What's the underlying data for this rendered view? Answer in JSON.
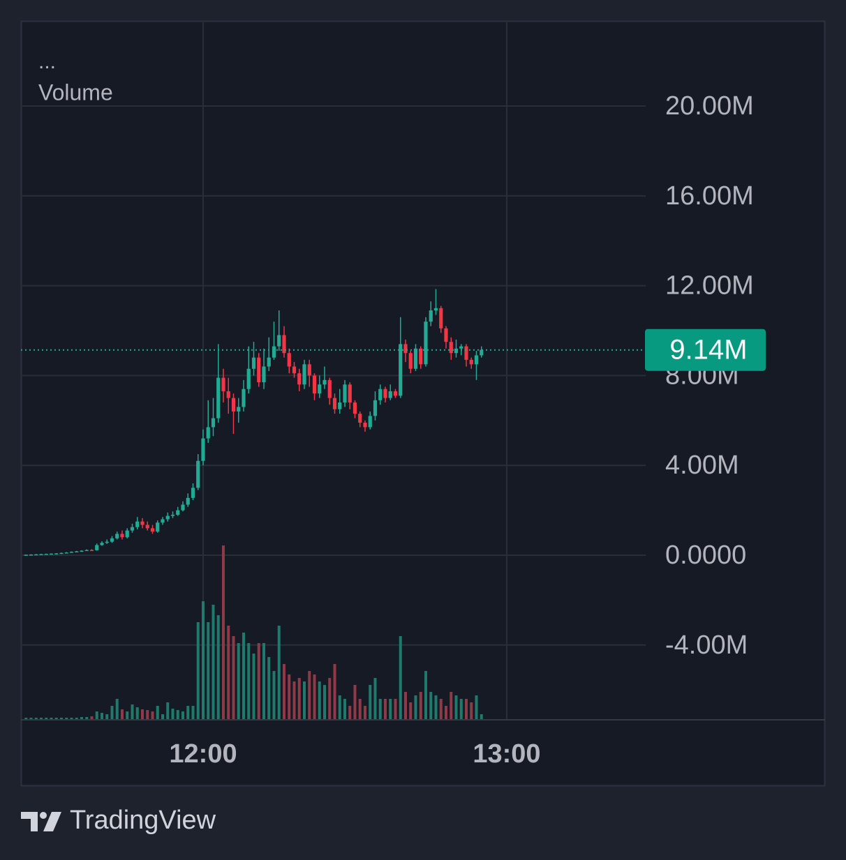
{
  "chart_data": {
    "type": "candlestick",
    "menu": "...",
    "volume_label": "Volume",
    "brand": "TradingView",
    "up_color": "#22ab94",
    "down_color": "#f23645",
    "volume_up_color": "#1f7a6c",
    "volume_down_color": "#8e3a47",
    "grid": true,
    "ylim": [
      -7330000,
      23790000
    ],
    "yticks": [
      {
        "value": -4000000,
        "label": "-4.00M"
      },
      {
        "value": 0,
        "label": "0.0000"
      },
      {
        "value": 4000000,
        "label": "4.00M"
      },
      {
        "value": 8000000,
        "label": "8.00M"
      },
      {
        "value": 12000000,
        "label": "12.00M"
      },
      {
        "value": 16000000,
        "label": "16.00M"
      },
      {
        "value": 20000000,
        "label": "20.00M"
      }
    ],
    "xlim": [
      684,
      807.45
    ],
    "xticks": [
      {
        "value": 720,
        "label": "12:00"
      },
      {
        "value": 780,
        "label": "13:00"
      }
    ],
    "last_price": {
      "value": 9140000,
      "label": "9.14M"
    },
    "x": [
      685,
      686,
      687,
      688,
      689,
      690,
      691,
      692,
      693,
      694,
      695,
      696,
      697,
      698,
      699,
      700,
      701,
      702,
      703,
      704,
      705,
      706,
      707,
      708,
      709,
      710,
      711,
      712,
      713,
      714,
      715,
      716,
      717,
      718,
      719,
      720,
      721,
      722,
      723,
      724,
      725,
      726,
      727,
      728,
      729,
      730,
      731,
      732,
      733,
      734,
      735,
      736,
      737,
      738,
      739,
      740,
      741,
      742,
      743,
      744,
      745,
      746,
      747,
      748,
      749,
      750,
      751,
      752,
      753,
      754,
      755,
      756,
      757,
      758,
      759,
      760,
      761,
      762,
      763,
      764,
      765,
      766,
      767,
      768,
      769,
      770,
      771,
      772,
      773,
      774,
      775
    ],
    "open": [
      10000,
      20000,
      30000,
      40000,
      50000,
      60000,
      70000,
      80000,
      100000,
      120000,
      150000,
      170000,
      200000,
      230000,
      220000,
      450000,
      550000,
      600000,
      750000,
      950000,
      800000,
      1100000,
      1250000,
      1500000,
      1350000,
      1200000,
      1050000,
      1450000,
      1600000,
      1750000,
      1800000,
      2000000,
      2250000,
      2550000,
      3000000,
      4200000,
      5200000,
      5700000,
      6100000,
      7900000,
      7300000,
      7000000,
      6400000,
      6600000,
      7400000,
      8300000,
      8800000,
      7700000,
      8400000,
      8800000,
      9300000,
      9800000,
      9000000,
      8400000,
      8100000,
      7600000,
      8500000,
      8000000,
      7200000,
      7600000,
      7800000,
      7000000,
      6500000,
      6800000,
      7600000,
      6800000,
      6300000,
      5900000,
      5700000,
      6200000,
      6900000,
      7400000,
      7000000,
      7300000,
      7100000,
      9400000,
      9000000,
      8300000,
      9200000,
      8500000,
      10400000,
      10900000,
      11000000,
      10100000,
      9500000,
      9000000,
      9200000,
      9300000,
      8700000,
      8500000,
      8900000
    ],
    "high": [
      30000,
      40000,
      50000,
      60000,
      70000,
      80000,
      90000,
      120000,
      140000,
      170000,
      190000,
      220000,
      260000,
      270000,
      520000,
      620000,
      700000,
      850000,
      1050000,
      1100000,
      1200000,
      1400000,
      1700000,
      1650000,
      1500000,
      1350000,
      1550000,
      1700000,
      1900000,
      1950000,
      2150000,
      2400000,
      2750000,
      3200000,
      4500000,
      5600000,
      6900000,
      7000000,
      9400000,
      8300000,
      7900000,
      7200000,
      7000000,
      7800000,
      9300000,
      9500000,
      9000000,
      9200000,
      9700000,
      10400000,
      10900000,
      10200000,
      9200000,
      8600000,
      8300000,
      8700000,
      8700000,
      8100000,
      8000000,
      8400000,
      7900000,
      7200000,
      7400000,
      7800000,
      7700000,
      6900000,
      6400000,
      6000000,
      6400000,
      7300000,
      7600000,
      7500000,
      7600000,
      7400000,
      10600000,
      9600000,
      9100000,
      9400000,
      9300000,
      10600000,
      11300000,
      11850000,
      11100000,
      10200000,
      9700000,
      9600000,
      9400000,
      9400000,
      8800000,
      9100000,
      9300000
    ],
    "low": [
      0,
      10000,
      20000,
      30000,
      40000,
      50000,
      60000,
      70000,
      90000,
      110000,
      140000,
      160000,
      190000,
      200000,
      200000,
      420000,
      500000,
      550000,
      700000,
      700000,
      750000,
      1000000,
      1150000,
      1200000,
      1100000,
      950000,
      1000000,
      1350000,
      1500000,
      1650000,
      1750000,
      1950000,
      2150000,
      2450000,
      2900000,
      4000000,
      5000000,
      5300000,
      5900000,
      6800000,
      6300000,
      5400000,
      5900000,
      6400000,
      7200000,
      8000000,
      7500000,
      7400000,
      8200000,
      8700000,
      9100000,
      8800000,
      8100000,
      7900000,
      7300000,
      7400000,
      7500000,
      6900000,
      7000000,
      7400000,
      6700000,
      6300000,
      6300000,
      6600000,
      6500000,
      6100000,
      5700000,
      5500000,
      5600000,
      6000000,
      6700000,
      6800000,
      6900000,
      7000000,
      7000000,
      8600000,
      8100000,
      8200000,
      8300000,
      8400000,
      10200000,
      10700000,
      9900000,
      9200000,
      8700000,
      8800000,
      8900000,
      8400000,
      8300000,
      7800000,
      8800000
    ],
    "close": [
      20000,
      30000,
      40000,
      50000,
      60000,
      70000,
      80000,
      100000,
      120000,
      150000,
      170000,
      200000,
      230000,
      220000,
      450000,
      550000,
      600000,
      750000,
      950000,
      800000,
      1100000,
      1250000,
      1500000,
      1350000,
      1200000,
      1050000,
      1450000,
      1600000,
      1750000,
      1800000,
      2000000,
      2250000,
      2550000,
      3000000,
      4200000,
      5200000,
      5700000,
      6100000,
      7900000,
      7300000,
      7000000,
      6400000,
      6600000,
      7400000,
      8300000,
      8800000,
      7700000,
      8400000,
      8800000,
      9300000,
      9800000,
      9000000,
      8400000,
      8100000,
      7600000,
      8500000,
      8000000,
      7200000,
      7600000,
      7800000,
      7000000,
      6500000,
      6800000,
      7600000,
      6800000,
      6300000,
      5900000,
      5700000,
      6200000,
      6900000,
      7400000,
      7000000,
      7300000,
      7100000,
      9400000,
      9000000,
      8300000,
      9200000,
      8500000,
      10400000,
      10900000,
      11000000,
      10100000,
      9500000,
      9000000,
      9200000,
      9300000,
      8700000,
      8500000,
      8900000,
      9140000
    ],
    "volume": [
      3000,
      3000,
      3000,
      3000,
      3000,
      3000,
      3000,
      3000,
      3000,
      3000,
      3000,
      4000,
      4000,
      5000,
      12000,
      10000,
      8000,
      20000,
      30000,
      15000,
      12000,
      22000,
      18000,
      15000,
      14000,
      12000,
      20000,
      8000,
      25000,
      16000,
      14000,
      12000,
      20000,
      20000,
      140000,
      170000,
      140000,
      165000,
      150000,
      250000,
      135000,
      120000,
      110000,
      125000,
      110000,
      95000,
      110000,
      110000,
      90000,
      70000,
      135000,
      80000,
      65000,
      55000,
      60000,
      55000,
      70000,
      65000,
      55000,
      50000,
      60000,
      80000,
      35000,
      30000,
      20000,
      50000,
      30000,
      20000,
      50000,
      60000,
      30000,
      30000,
      30000,
      30000,
      120000,
      40000,
      25000,
      35000,
      40000,
      70000,
      40000,
      35000,
      30000,
      20000,
      40000,
      35000,
      30000,
      30000,
      25000,
      35000,
      8000
    ]
  }
}
